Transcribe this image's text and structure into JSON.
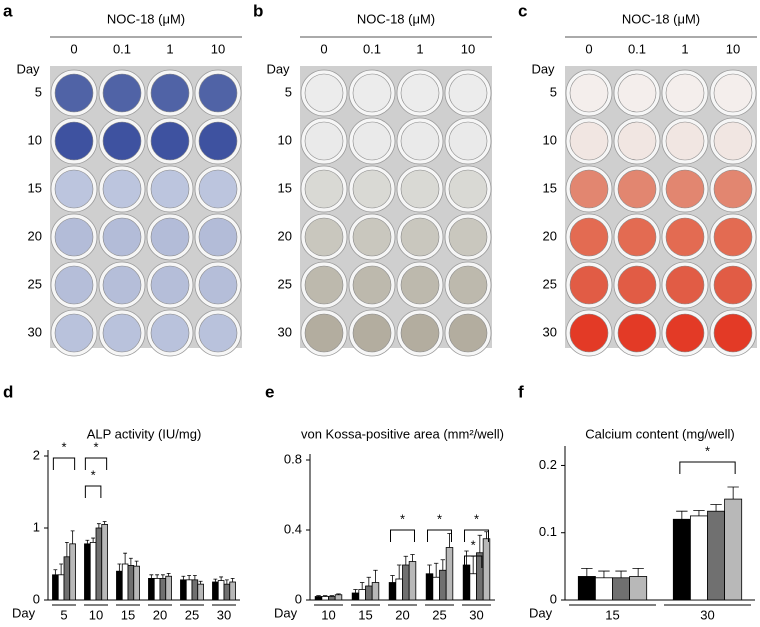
{
  "figure": {
    "images": [
      {
        "label": "a"
      },
      {
        "label": "b"
      },
      {
        "label": "c"
      }
    ],
    "header": "NOC-18 (μM)",
    "concentrations": [
      "0",
      "0.1",
      "1",
      "10"
    ],
    "day_label": "Day",
    "days": [
      "5",
      "10",
      "15",
      "20",
      "25",
      "30"
    ]
  },
  "chart_data": [
    {
      "type": "bar",
      "label": "d",
      "title": "ALP activity (IU/mg)",
      "x_label": "Day",
      "categories": [
        "5",
        "10",
        "15",
        "20",
        "25",
        "30"
      ],
      "ylim": [
        0,
        2
      ],
      "yticks": [
        0,
        1,
        2
      ],
      "series": [
        {
          "color": "#000000",
          "values": [
            0.35,
            0.78,
            0.4,
            0.3,
            0.28,
            0.25
          ],
          "errors": [
            0.07,
            0.05,
            0.1,
            0.05,
            0.05,
            0.04
          ]
        },
        {
          "color": "#ffffff",
          "values": [
            0.35,
            0.8,
            0.5,
            0.3,
            0.28,
            0.27
          ],
          "errors": [
            0.15,
            0.06,
            0.15,
            0.05,
            0.06,
            0.05
          ]
        },
        {
          "color": "#707070",
          "values": [
            0.6,
            1.0,
            0.48,
            0.3,
            0.28,
            0.22
          ],
          "errors": [
            0.2,
            0.06,
            0.1,
            0.05,
            0.06,
            0.06
          ]
        },
        {
          "color": "#b8b8b8",
          "values": [
            0.78,
            1.05,
            0.47,
            0.33,
            0.22,
            0.25
          ],
          "errors": [
            0.18,
            0.04,
            0.07,
            0.04,
            0.04,
            0.05
          ]
        }
      ],
      "annotations": [
        "*",
        "*",
        "*"
      ]
    },
    {
      "type": "bar",
      "label": "e",
      "title": "von Kossa-positive area (mm²/well)",
      "x_label": "Day",
      "categories": [
        "10",
        "15",
        "20",
        "25",
        "30"
      ],
      "ylim": [
        0,
        0.8
      ],
      "yticks": [
        0,
        0.4,
        0.8
      ],
      "series": [
        {
          "color": "#000000",
          "values": [
            0.02,
            0.04,
            0.1,
            0.15,
            0.2
          ],
          "errors": [
            0.005,
            0.02,
            0.04,
            0.05,
            0.08
          ]
        },
        {
          "color": "#ffffff",
          "values": [
            0.02,
            0.06,
            0.12,
            0.13,
            0.15
          ],
          "errors": [
            0.005,
            0.04,
            0.08,
            0.08,
            0.1
          ]
        },
        {
          "color": "#707070",
          "values": [
            0.02,
            0.08,
            0.2,
            0.17,
            0.27
          ],
          "errors": [
            0.005,
            0.05,
            0.05,
            0.06,
            0.1
          ]
        },
        {
          "color": "#b8b8b8",
          "values": [
            0.03,
            0.1,
            0.22,
            0.3,
            0.35
          ],
          "errors": [
            0.005,
            0.07,
            0.04,
            0.08,
            0.04
          ]
        }
      ],
      "annotations": [
        "*",
        "*",
        "*",
        "*"
      ]
    },
    {
      "type": "bar",
      "label": "f",
      "title": "Calcium content (mg/well)",
      "x_label": "Day",
      "categories": [
        "15",
        "30"
      ],
      "ylim": [
        0,
        0.22
      ],
      "yticks": [
        0,
        0.1,
        0.2
      ],
      "series": [
        {
          "color": "#000000",
          "values": [
            0.035,
            0.12
          ],
          "errors": [
            0.012,
            0.012
          ]
        },
        {
          "color": "#ffffff",
          "values": [
            0.033,
            0.125
          ],
          "errors": [
            0.01,
            0.008
          ]
        },
        {
          "color": "#707070",
          "values": [
            0.033,
            0.132
          ],
          "errors": [
            0.01,
            0.01
          ]
        },
        {
          "color": "#b8b8b8",
          "values": [
            0.035,
            0.15
          ],
          "errors": [
            0.012,
            0.018
          ]
        }
      ],
      "annotations": [
        "*"
      ]
    }
  ]
}
